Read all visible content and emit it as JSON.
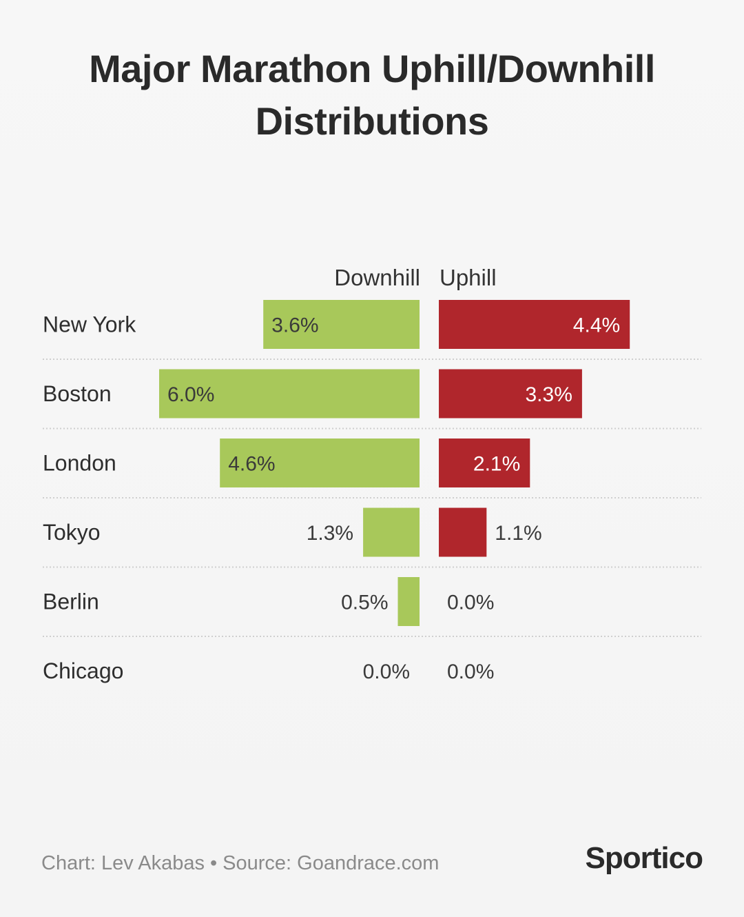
{
  "title_lines": [
    "Major Marathon Uphill/Downhill",
    "Distributions"
  ],
  "columns": {
    "downhill": "Downhill",
    "uphill": "Uphill"
  },
  "footer": {
    "chart": "Chart: Lev Akabas",
    "separator": "•",
    "source": "Source: Goandrace.com"
  },
  "brand": "Sportico",
  "colors": {
    "downhill": "#a8c85a",
    "uphill": "#b0262c",
    "grid": "#cfcfcf"
  },
  "chart_data": {
    "type": "bar",
    "orientation": "horizontal-diverging",
    "title": "Major Marathon Uphill/Downhill Distributions",
    "categories": [
      "New York",
      "Boston",
      "London",
      "Tokyo",
      "Berlin",
      "Chicago"
    ],
    "series": [
      {
        "name": "Downhill",
        "values": [
          3.6,
          6.0,
          4.6,
          1.3,
          0.5,
          0.0
        ],
        "labels": [
          "3.6%",
          "6.0%",
          "4.6%",
          "1.3%",
          "0.5%",
          "0.0%"
        ]
      },
      {
        "name": "Uphill",
        "values": [
          4.4,
          3.3,
          2.1,
          1.1,
          0.0,
          0.0
        ],
        "labels": [
          "4.4%",
          "3.3%",
          "2.1%",
          "1.1%",
          "0.0%",
          "0.0%"
        ]
      }
    ],
    "unit": "%",
    "legend": "column headers above bars"
  }
}
